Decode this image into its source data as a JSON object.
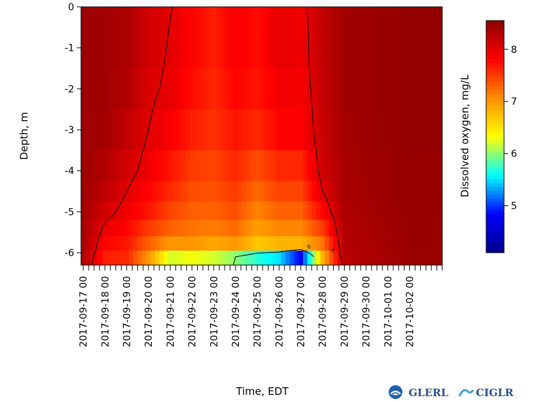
{
  "chart_data": {
    "type": "heatmap",
    "xlabel": "Time, EDT",
    "ylabel": "Depth, m",
    "colorbar_label": "Dissolved oxygen, mg/L",
    "x_ticks": [
      "2017-09-17 00",
      "2017-09-18 00",
      "2017-09-19 00",
      "2017-09-20 00",
      "2017-09-21 00",
      "2017-09-22 00",
      "2017-09-23 00",
      "2017-09-24 00",
      "2017-09-25 00",
      "2017-09-26 00",
      "2017-09-27 00",
      "2017-09-28 00",
      "2017-09-29 00",
      "2017-09-30 00",
      "2017-10-01 00",
      "2017-10-02 00"
    ],
    "y_ticks": [
      0,
      -1,
      -2,
      -3,
      -4,
      -5,
      -6
    ],
    "colorbar_ticks": [
      5,
      6,
      7,
      8
    ],
    "xlim_days_from_first_tick": [
      -0.1,
      16.5
    ],
    "ylim": [
      -6.3,
      0
    ],
    "clim": [
      4.1,
      8.55
    ],
    "colormap": [
      "#00008b",
      "#0000ff",
      "#00ffff",
      "#ffff00",
      "#ff8c00",
      "#ff0000",
      "#8b0000"
    ],
    "depths": [
      -0.3,
      -1.0,
      -2.0,
      -3.0,
      -4.0,
      -4.5,
      -5.0,
      -5.4,
      -5.8,
      -6.1
    ],
    "profiles": [
      {
        "time": "2017-09-17 00",
        "values": [
          8.45,
          8.45,
          8.45,
          8.44,
          8.42,
          8.42,
          8.4,
          8.38,
          8.35,
          8.33
        ]
      },
      {
        "time": "2017-09-18 00",
        "values": [
          8.4,
          8.4,
          8.4,
          8.38,
          8.3,
          8.22,
          8.1,
          7.95,
          7.8,
          7.65
        ]
      },
      {
        "time": "2017-09-19 00",
        "values": [
          8.35,
          8.35,
          8.3,
          8.2,
          8.1,
          8.0,
          7.9,
          7.8,
          7.7,
          7.6
        ]
      },
      {
        "time": "2017-09-20 00",
        "values": [
          8.1,
          8.1,
          8.05,
          8.0,
          7.9,
          7.8,
          7.7,
          7.5,
          7.3,
          7.0
        ]
      },
      {
        "time": "2017-09-21 00",
        "values": [
          8.0,
          7.98,
          7.95,
          7.85,
          7.7,
          7.6,
          7.45,
          7.3,
          7.0,
          6.2
        ]
      },
      {
        "time": "2017-09-22 00",
        "values": [
          7.8,
          7.8,
          7.75,
          7.65,
          7.5,
          7.4,
          7.3,
          7.2,
          7.0,
          6.3
        ]
      },
      {
        "time": "2017-09-23 00",
        "values": [
          7.65,
          7.65,
          7.6,
          7.55,
          7.45,
          7.38,
          7.3,
          7.15,
          6.9,
          6.2
        ]
      },
      {
        "time": "2017-09-24 00",
        "values": [
          7.85,
          7.85,
          7.8,
          7.7,
          7.6,
          7.5,
          7.4,
          7.25,
          7.0,
          6.0
        ]
      },
      {
        "time": "2017-09-25 00",
        "values": [
          7.75,
          7.75,
          7.7,
          7.6,
          7.4,
          7.25,
          7.1,
          6.95,
          6.7,
          5.7
        ]
      },
      {
        "time": "2017-09-26 00",
        "values": [
          7.95,
          7.95,
          7.9,
          7.8,
          7.6,
          7.45,
          7.3,
          7.1,
          6.8,
          5.5
        ]
      },
      {
        "time": "2017-09-27 00",
        "values": [
          7.9,
          7.9,
          7.85,
          7.8,
          7.6,
          7.45,
          7.3,
          7.1,
          6.8,
          4.8
        ]
      },
      {
        "time": "2017-09-28 00",
        "values": [
          8.2,
          8.2,
          8.18,
          8.15,
          8.1,
          8.0,
          7.8,
          7.5,
          7.2,
          6.8
        ]
      },
      {
        "time": "2017-09-29 00",
        "values": [
          8.4,
          8.4,
          8.4,
          8.38,
          8.36,
          8.35,
          8.33,
          8.3,
          8.28,
          8.25
        ]
      },
      {
        "time": "2017-10-02 00",
        "values": [
          8.5,
          8.5,
          8.5,
          8.5,
          8.48,
          8.48,
          8.47,
          8.46,
          8.45,
          8.44
        ]
      }
    ],
    "contour_labels": [
      "8",
      "6"
    ]
  },
  "logos": {
    "glerl": "GLERL",
    "ciglr": "CIGLR"
  }
}
